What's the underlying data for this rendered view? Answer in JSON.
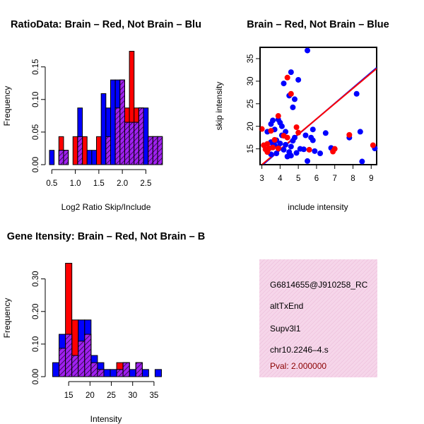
{
  "colors": {
    "red": "#ff0000",
    "blue": "#0000ff",
    "purple": "#a020f0",
    "info_bg": "#f6d6ea",
    "pval": "#8b0000"
  },
  "chart_data": [
    {
      "type": "bar",
      "title": "RatioData: Brain – Red, Not Brain – Blu",
      "xlabel": "Log2 Ratio Skip/Include",
      "ylabel": "Frequency",
      "xlim": [
        0.45,
        2.9
      ],
      "ylim": [
        0,
        0.18
      ],
      "xticks": [
        "0.5",
        "1.0",
        "1.5",
        "2.0",
        "2.5"
      ],
      "yticks": [
        "0.00",
        "0.05",
        "0.10",
        "0.15"
      ],
      "bin_width": 0.1,
      "series": [
        {
          "name": "Not Brain",
          "color": "blue",
          "bins": [
            [
              0.45,
              0.022
            ],
            [
              0.65,
              0.022
            ],
            [
              0.75,
              0.022
            ],
            [
              1.05,
              0.087
            ],
            [
              1.25,
              0.022
            ],
            [
              1.35,
              0.022
            ],
            [
              1.55,
              0.109
            ],
            [
              1.65,
              0.087
            ],
            [
              1.75,
              0.13
            ],
            [
              1.85,
              0.13
            ],
            [
              1.95,
              0.13
            ],
            [
              2.05,
              0.065
            ],
            [
              2.15,
              0.065
            ],
            [
              2.25,
              0.065
            ],
            [
              2.35,
              0.087
            ],
            [
              2.45,
              0.087
            ],
            [
              2.55,
              0.043
            ],
            [
              2.65,
              0.043
            ],
            [
              2.75,
              0.043
            ]
          ]
        },
        {
          "name": "Brain",
          "color": "red",
          "bins": [
            [
              0.65,
              0.043
            ],
            [
              0.75,
              0.022
            ],
            [
              0.95,
              0.043
            ],
            [
              1.05,
              0.043
            ],
            [
              1.15,
              0.043
            ],
            [
              1.45,
              0.043
            ],
            [
              1.65,
              0.043
            ],
            [
              1.85,
              0.087
            ],
            [
              1.95,
              0.13
            ],
            [
              2.05,
              0.087
            ],
            [
              2.15,
              0.174
            ],
            [
              2.25,
              0.087
            ],
            [
              2.35,
              0.087
            ],
            [
              2.55,
              0.043
            ],
            [
              2.65,
              0.043
            ],
            [
              2.75,
              0.043
            ]
          ]
        }
      ]
    },
    {
      "type": "scatter",
      "title": "Brain – Red, Not Brain – Blue",
      "xlabel": "include intensity",
      "ylabel": "skip intensity",
      "xlim": [
        2.9,
        9.3
      ],
      "ylim": [
        11.5,
        37.5
      ],
      "xticks": [
        "3",
        "4",
        "5",
        "6",
        "7",
        "8",
        "9"
      ],
      "yticks": [
        "15",
        "20",
        "25",
        "30",
        "35"
      ],
      "fit_lines": [
        {
          "color": "blue",
          "x1": 3.0,
          "y1": 11.3,
          "x2": 9.3,
          "y2": 33.0
        },
        {
          "color": "red",
          "x1": 3.0,
          "y1": 11.5,
          "x2": 9.3,
          "y2": 32.8
        }
      ],
      "series": [
        {
          "name": "Not Brain",
          "color": "blue",
          "points": [
            [
              5.5,
              36.8
            ],
            [
              4.6,
              32.0
            ],
            [
              4.2,
              29.5
            ],
            [
              5.0,
              30.3
            ],
            [
              4.8,
              26.0
            ],
            [
              4.5,
              26.8
            ],
            [
              4.7,
              24.2
            ],
            [
              3.5,
              20.5
            ],
            [
              3.6,
              21.3
            ],
            [
              3.9,
              21.5
            ],
            [
              4.0,
              20.8
            ],
            [
              4.1,
              20.0
            ],
            [
              4.3,
              18.8
            ],
            [
              4.1,
              18.0
            ],
            [
              3.7,
              19.3
            ],
            [
              3.3,
              18.8
            ],
            [
              3.5,
              16.5
            ],
            [
              3.6,
              15.5
            ],
            [
              3.7,
              15.8
            ],
            [
              3.8,
              16.9
            ],
            [
              3.9,
              15.3
            ],
            [
              4.0,
              16.2
            ],
            [
              4.2,
              14.8
            ],
            [
              4.3,
              15.9
            ],
            [
              4.4,
              13.3
            ],
            [
              4.5,
              14.3
            ],
            [
              4.6,
              15.5
            ],
            [
              4.7,
              16.8
            ],
            [
              4.8,
              17.5
            ],
            [
              4.9,
              14.1
            ],
            [
              5.1,
              15.0
            ],
            [
              5.3,
              14.9
            ],
            [
              5.4,
              18.0
            ],
            [
              5.5,
              12.3
            ],
            [
              5.7,
              17.5
            ],
            [
              5.8,
              19.3
            ],
            [
              5.9,
              14.5
            ],
            [
              6.2,
              14.0
            ],
            [
              6.5,
              18.5
            ],
            [
              6.8,
              15.2
            ],
            [
              7.8,
              17.5
            ],
            [
              8.2,
              27.2
            ],
            [
              8.4,
              18.8
            ],
            [
              8.5,
              12.2
            ],
            [
              9.2,
              15.1
            ],
            [
              3.5,
              13.8
            ],
            [
              3.8,
              14.0
            ],
            [
              4.6,
              13.5
            ],
            [
              5.8,
              16.9
            ]
          ]
        },
        {
          "name": "Brain",
          "color": "red",
          "points": [
            [
              4.4,
              30.8
            ],
            [
              4.6,
              27.2
            ],
            [
              3.9,
              22.3
            ],
            [
              3.0,
              19.4
            ],
            [
              3.5,
              19.0
            ],
            [
              3.1,
              15.8
            ],
            [
              3.2,
              14.9
            ],
            [
              3.3,
              14.3
            ],
            [
              3.4,
              15.1
            ],
            [
              3.6,
              15.3
            ],
            [
              3.9,
              15.1
            ],
            [
              4.4,
              17.5
            ],
            [
              4.9,
              19.8
            ],
            [
              5.0,
              18.6
            ],
            [
              5.6,
              14.8
            ],
            [
              6.9,
              14.4
            ],
            [
              7.0,
              15.0
            ],
            [
              7.8,
              18.1
            ],
            [
              9.1,
              15.8
            ],
            [
              3.3,
              16.1
            ],
            [
              3.7,
              17.0
            ],
            [
              4.2,
              17.9
            ]
          ]
        }
      ]
    },
    {
      "type": "bar",
      "title": "Gene Itensity: Brain – Red, Not Brain – B",
      "xlabel": "Intensity",
      "ylabel": "Frequency",
      "xlim": [
        10.5,
        37.5
      ],
      "ylim": [
        0,
        0.36
      ],
      "xticks": [
        "15",
        "20",
        "25",
        "30",
        "35"
      ],
      "yticks": [
        "0.00",
        "0.10",
        "0.20",
        "0.30"
      ],
      "bin_width": 1.5,
      "series": [
        {
          "name": "Not Brain",
          "color": "blue",
          "bins": [
            [
              11.25,
              0.043
            ],
            [
              12.75,
              0.13
            ],
            [
              14.25,
              0.13
            ],
            [
              15.75,
              0.065
            ],
            [
              17.25,
              0.174
            ],
            [
              18.75,
              0.174
            ],
            [
              20.25,
              0.065
            ],
            [
              21.75,
              0.043
            ],
            [
              23.25,
              0.022
            ],
            [
              24.75,
              0.022
            ],
            [
              26.25,
              0.022
            ],
            [
              27.75,
              0.043
            ],
            [
              29.25,
              0.022
            ],
            [
              30.75,
              0.043
            ],
            [
              32.25,
              0.022
            ],
            [
              35.25,
              0.022
            ]
          ]
        },
        {
          "name": "Brain",
          "color": "red",
          "bins": [
            [
              12.75,
              0.087
            ],
            [
              14.25,
              0.348
            ],
            [
              15.75,
              0.174
            ],
            [
              17.25,
              0.109
            ],
            [
              18.75,
              0.13
            ],
            [
              20.25,
              0.043
            ],
            [
              21.75,
              0.022
            ],
            [
              26.25,
              0.043
            ],
            [
              27.75,
              0.043
            ],
            [
              30.75,
              0.043
            ]
          ]
        }
      ]
    }
  ],
  "info": {
    "lines": [
      "G6814655@J910258_RC",
      "altTxEnd",
      "Supv3l1",
      "chr10.2246–4.s"
    ],
    "pval": "Pval: 2.000000"
  }
}
